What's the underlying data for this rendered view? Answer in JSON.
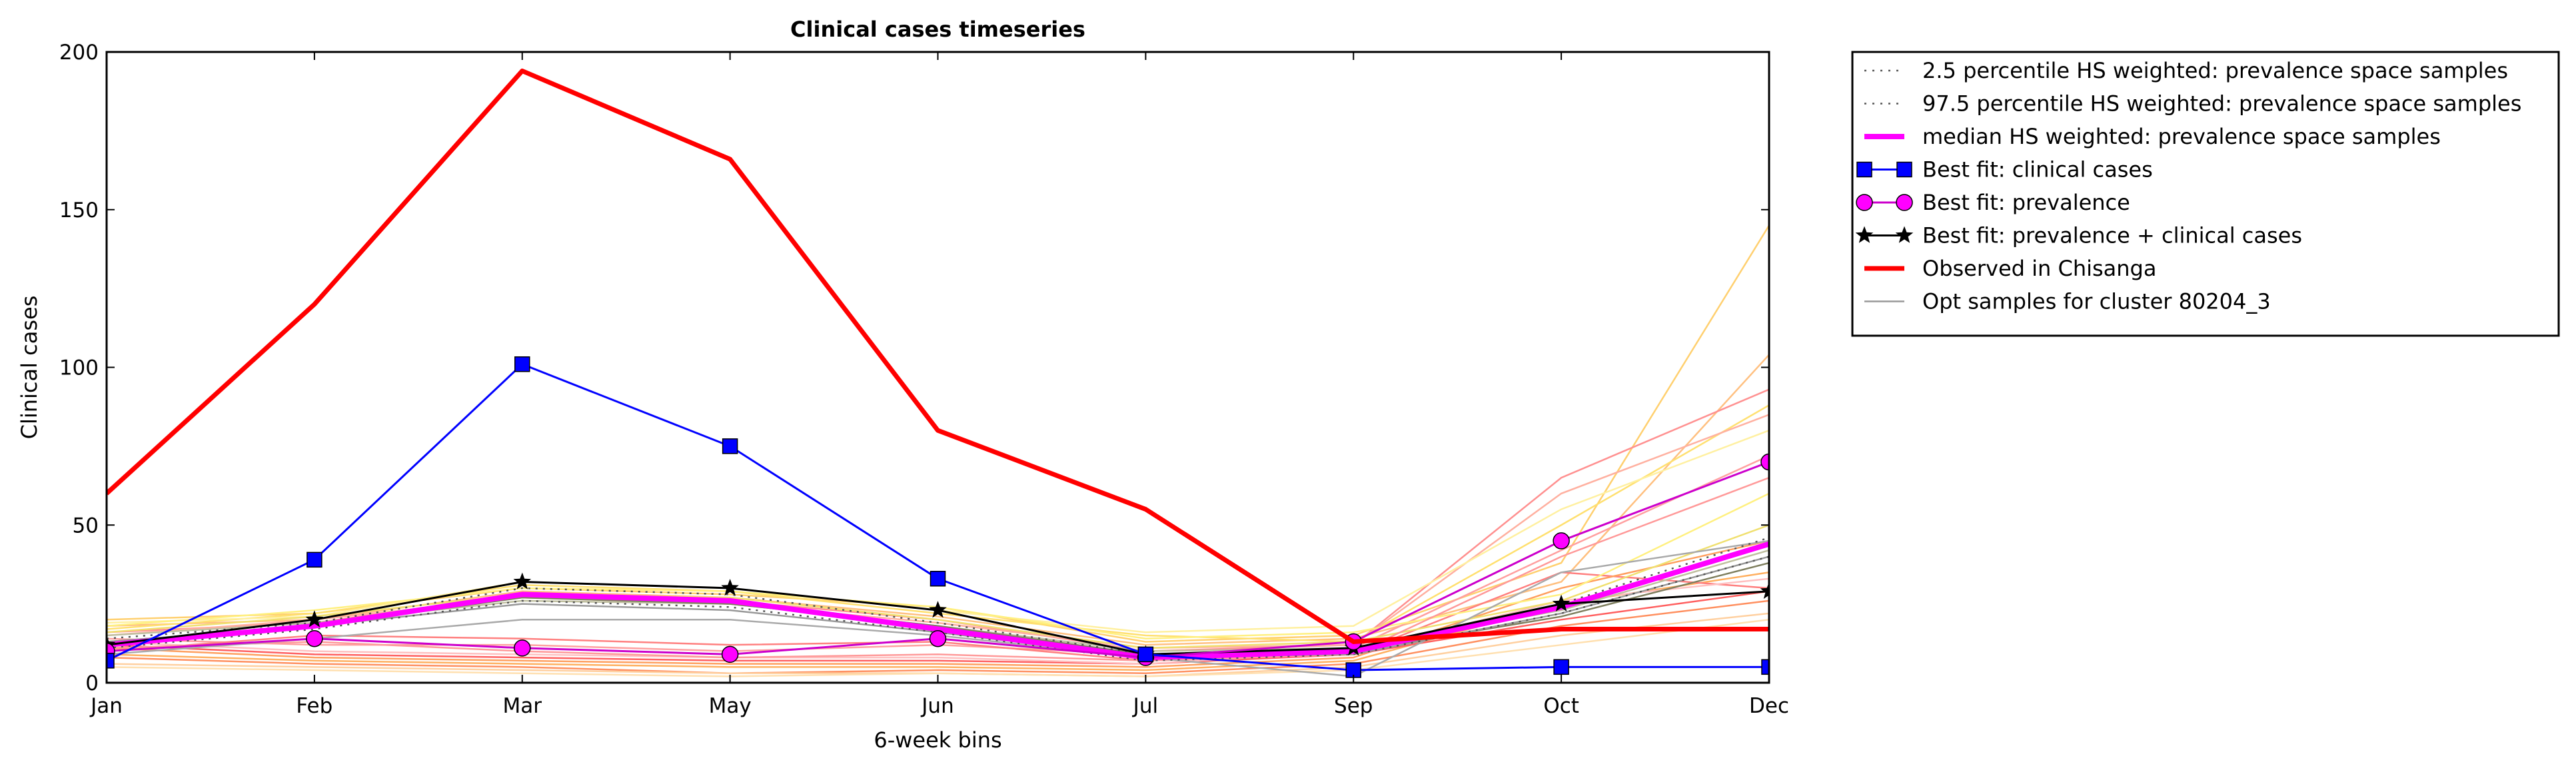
{
  "chart_data": {
    "type": "line",
    "title": "Clinical cases timeseries",
    "xlabel": "6-week bins",
    "ylabel": "Clinical cases",
    "categories": [
      "Jan",
      "Feb",
      "Mar",
      "May",
      "Jun",
      "Jul",
      "Sep",
      "Oct",
      "Dec"
    ],
    "y_ticks": [
      "0",
      "50",
      "100",
      "150",
      "200"
    ],
    "ylim": [
      0,
      200
    ],
    "grid": false,
    "legend_position": "outside-right",
    "series": [
      {
        "name": "2.5 percentile HS weighted: prevalence space samples",
        "style": "dotted",
        "color": "#555555",
        "values": [
          11,
          17,
          26,
          24,
          16,
          7,
          9,
          22,
          40
        ]
      },
      {
        "name": "97.5 percentile HS weighted: prevalence space samples",
        "style": "dotted",
        "color": "#555555",
        "values": [
          14,
          19,
          30,
          28,
          19,
          9,
          11,
          25,
          46
        ]
      },
      {
        "name": "median HS weighted: prevalence space samples",
        "style": "solid",
        "color": "#ff00ff",
        "values": [
          12,
          18,
          28,
          26,
          17,
          8,
          10,
          24,
          44
        ]
      },
      {
        "name": "Best fit: clinical cases",
        "style": "solid",
        "marker": "square",
        "color": "#0000ff",
        "values": [
          7,
          39,
          101,
          75,
          33,
          9,
          4,
          5,
          5
        ]
      },
      {
        "name": "Best fit: prevalence",
        "style": "solid",
        "marker": "circle",
        "color": "#cc00cc",
        "marker_color": "#ff00ff",
        "values": [
          10,
          14,
          11,
          9,
          14,
          8,
          13,
          45,
          70
        ]
      },
      {
        "name": "Best fit: prevalence + clinical cases",
        "style": "solid",
        "marker": "star",
        "color": "#000000",
        "values": [
          12,
          20,
          32,
          30,
          23,
          9,
          11,
          25,
          29
        ]
      },
      {
        "name": "Observed in Chisanga",
        "style": "solid",
        "color": "#ff0000",
        "values": [
          60,
          120,
          194,
          166,
          80,
          55,
          13,
          17,
          17
        ]
      },
      {
        "name": "Opt samples for cluster 80204_3",
        "style": "solid",
        "color": "#999999",
        "values": [
          13,
          18,
          25,
          23,
          16,
          8,
          9,
          22,
          40
        ]
      }
    ],
    "sample_lines": [
      {
        "color": "#ffd070",
        "values": [
          20,
          22,
          30,
          28,
          24,
          13,
          15,
          38,
          145
        ]
      },
      {
        "color": "#ffc080",
        "values": [
          18,
          20,
          29,
          27,
          21,
          12,
          14,
          32,
          104
        ]
      },
      {
        "color": "#ff9090",
        "values": [
          16,
          19,
          28,
          26,
          20,
          10,
          12,
          65,
          93
        ]
      },
      {
        "color": "#ffe070",
        "values": [
          17,
          22,
          31,
          29,
          22,
          15,
          13,
          50,
          88
        ]
      },
      {
        "color": "#ffb0a0",
        "values": [
          15,
          20,
          27,
          25,
          19,
          11,
          12,
          60,
          85
        ]
      },
      {
        "color": "#fff0a0",
        "values": [
          19,
          21,
          32,
          30,
          23,
          16,
          18,
          55,
          80
        ]
      },
      {
        "color": "#ffa0a0",
        "values": [
          14,
          12,
          12,
          10,
          12,
          9,
          11,
          42,
          72
        ]
      },
      {
        "color": "#ff9060",
        "values": [
          8,
          6,
          5,
          3,
          4,
          3,
          6,
          18,
          26
        ]
      },
      {
        "color": "#ffd0a0",
        "values": [
          6,
          5,
          4,
          3,
          3,
          2,
          5,
          15,
          22
        ]
      },
      {
        "color": "#ffb060",
        "values": [
          9,
          7,
          6,
          5,
          5,
          4,
          7,
          25,
          35
        ]
      },
      {
        "color": "#ff8080",
        "values": [
          10,
          15,
          14,
          12,
          13,
          7,
          9,
          35,
          30
        ]
      },
      {
        "color": "#ffe0b0",
        "values": [
          5,
          4,
          3,
          2,
          3,
          2,
          4,
          12,
          20
        ]
      },
      {
        "color": "#ffa060",
        "values": [
          11,
          8,
          7,
          6,
          6,
          5,
          8,
          30,
          45
        ]
      },
      {
        "color": "#ff6060",
        "values": [
          12,
          9,
          8,
          7,
          7,
          6,
          9,
          20,
          29
        ]
      },
      {
        "color": "#ffc0c0",
        "values": [
          13,
          10,
          9,
          8,
          8,
          6,
          10,
          26,
          33
        ]
      },
      {
        "color": "#fff080",
        "values": [
          18,
          23,
          30,
          29,
          24,
          14,
          16,
          28,
          60
        ]
      },
      {
        "color": "#f0e070",
        "values": [
          16,
          21,
          28,
          27,
          20,
          11,
          13,
          26,
          50
        ]
      },
      {
        "color": "#c0c0a0",
        "values": [
          15,
          19,
          26,
          25,
          18,
          10,
          11,
          23,
          42
        ]
      },
      {
        "color": "#808060",
        "values": [
          13,
          18,
          27,
          25,
          18,
          9,
          10,
          21,
          38
        ]
      },
      {
        "color": "#ff9999",
        "values": [
          11,
          13,
          10,
          8,
          9,
          7,
          9,
          40,
          65
        ]
      },
      {
        "color": "#aaaaaa",
        "values": [
          9,
          14,
          20,
          20,
          15,
          8,
          2,
          35,
          45
        ]
      }
    ]
  }
}
